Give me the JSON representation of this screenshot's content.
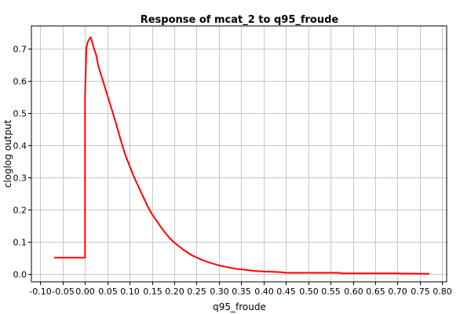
{
  "chart_data": {
    "type": "line",
    "title": "Response of mcat_2 to q95_froude",
    "xlabel": "q95_froude",
    "ylabel": "cloglog output",
    "xlim": [
      -0.12,
      0.81
    ],
    "ylim": [
      -0.025,
      0.77
    ],
    "xticks": [
      -0.1,
      -0.05,
      0.0,
      0.05,
      0.1,
      0.15,
      0.2,
      0.25,
      0.3,
      0.35,
      0.4,
      0.45,
      0.5,
      0.55,
      0.6,
      0.65,
      0.7,
      0.75,
      0.8
    ],
    "xtick_labels": [
      "-0.10",
      "-0.05",
      "0.00",
      "0.05",
      "0.10",
      "0.15",
      "0.20",
      "0.25",
      "0.30",
      "0.35",
      "0.40",
      "0.45",
      "0.50",
      "0.55",
      "0.60",
      "0.65",
      "0.70",
      "0.75",
      "0.80"
    ],
    "yticks": [
      0.0,
      0.1,
      0.2,
      0.3,
      0.4,
      0.5,
      0.6,
      0.7
    ],
    "ytick_labels": [
      "0.0",
      "0.1",
      "0.2",
      "0.3",
      "0.4",
      "0.5",
      "0.6",
      "0.7"
    ],
    "grid": true,
    "series": [
      {
        "color": "#ff0000",
        "x": [
          -0.068,
          0.0,
          0.0,
          0.003,
          0.006,
          0.01,
          0.013,
          0.02,
          0.025,
          0.03,
          0.04,
          0.05,
          0.06,
          0.07,
          0.08,
          0.09,
          0.1,
          0.11,
          0.12,
          0.13,
          0.14,
          0.15,
          0.16,
          0.17,
          0.18,
          0.19,
          0.2,
          0.22,
          0.24,
          0.26,
          0.28,
          0.3,
          0.32,
          0.34,
          0.36,
          0.38,
          0.4,
          0.42,
          0.44,
          0.45,
          0.5,
          0.57,
          0.575,
          0.65,
          0.7,
          0.77
        ],
        "y": [
          0.05,
          0.05,
          0.55,
          0.7,
          0.72,
          0.73,
          0.735,
          0.7,
          0.68,
          0.645,
          0.6,
          0.555,
          0.51,
          0.465,
          0.415,
          0.37,
          0.335,
          0.3,
          0.27,
          0.24,
          0.21,
          0.185,
          0.165,
          0.145,
          0.127,
          0.11,
          0.097,
          0.075,
          0.057,
          0.044,
          0.034,
          0.026,
          0.02,
          0.015,
          0.012,
          0.009,
          0.007,
          0.006,
          0.005,
          0.003,
          0.003,
          0.003,
          0.001,
          0.001,
          0.001,
          0.0
        ]
      }
    ]
  }
}
